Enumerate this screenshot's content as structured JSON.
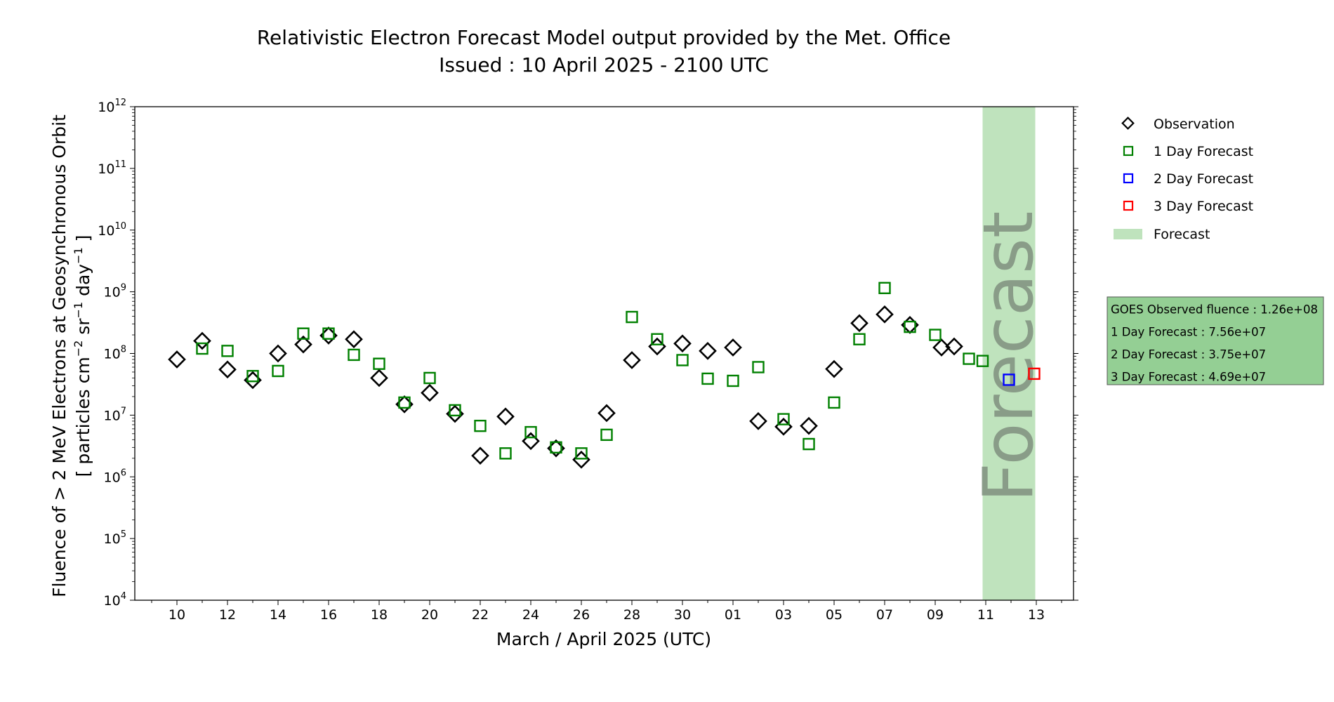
{
  "title": {
    "line1": "Relativistic Electron Forecast Model output provided by the Met. Office",
    "line2": "Issued : 10 April 2025 - 2100 UTC"
  },
  "axes": {
    "xlabel": "March / April 2025 (UTC)",
    "ylabel_line1": "Fluence of > 2 MeV Electrons at Geosynchronous Orbit",
    "ylabel_line2_parts": [
      "[ particles cm",
      "−2",
      " sr",
      "−1",
      " day",
      "−1",
      " ]"
    ],
    "x_tick_labels": [
      "10",
      "12",
      "14",
      "16",
      "18",
      "20",
      "22",
      "24",
      "26",
      "28",
      "30",
      "01",
      "03",
      "05",
      "07",
      "09",
      "11",
      "13"
    ],
    "y_tick_exponents": [
      "4",
      "5",
      "6",
      "7",
      "8",
      "9",
      "10",
      "11",
      "12"
    ]
  },
  "legend": {
    "observation": "Observation",
    "one_day": "1 Day Forecast",
    "two_day": "2 Day Forecast",
    "three_day": "3 Day Forecast",
    "forecast": "Forecast"
  },
  "forecast_band_text": "Forecast",
  "info_box": {
    "line1": "GOES Observed fluence : 1.26e+08",
    "line2": "1 Day Forecast : 7.56e+07",
    "line3": "2 Day Forecast : 3.75e+07",
    "line4": "3 Day Forecast : 4.69e+07"
  },
  "colors": {
    "observation": "#000000",
    "one_day": "#008000",
    "two_day": "#0000ff",
    "three_day": "#ff0000",
    "forecast_band": "#bfe3bd",
    "info_box": "#94cf94"
  },
  "chart_data": {
    "type": "scatter",
    "xlabel": "March / April 2025 (UTC)",
    "ylabel": "Fluence of > 2 MeV Electrons at Geosynchronous Orbit [ particles cm−2 sr−1 day−1 ]",
    "yscale": "log",
    "ylim": [
      10000,
      1000000000000
    ],
    "xlim": [
      "2025-03-08",
      "2025-04-14"
    ],
    "forecast_band": [
      "2025-04-10 21:00",
      "2025-04-12 23:00"
    ],
    "legend_position": "right",
    "series": [
      {
        "name": "Observation",
        "marker": "diamond",
        "points": [
          [
            "2025-03-10",
            80000000
          ],
          [
            "2025-03-11",
            160000000
          ],
          [
            "2025-03-12",
            55000000
          ],
          [
            "2025-03-13",
            37000000
          ],
          [
            "2025-03-14",
            100000000
          ],
          [
            "2025-03-15",
            140000000
          ],
          [
            "2025-03-16",
            195000000
          ],
          [
            "2025-03-17",
            170000000
          ],
          [
            "2025-03-18",
            40000000
          ],
          [
            "2025-03-19",
            15000000
          ],
          [
            "2025-03-20",
            23000000
          ],
          [
            "2025-03-21",
            10500000
          ],
          [
            "2025-03-22",
            2200000
          ],
          [
            "2025-03-23",
            9500000
          ],
          [
            "2025-03-24",
            3800000
          ],
          [
            "2025-03-25",
            2900000
          ],
          [
            "2025-03-26",
            1900000
          ],
          [
            "2025-03-27",
            10800000
          ],
          [
            "2025-03-28",
            78000000
          ],
          [
            "2025-03-29",
            130000000
          ],
          [
            "2025-03-30",
            145000000
          ],
          [
            "2025-03-31",
            110000000
          ],
          [
            "2025-04-01",
            125000000
          ],
          [
            "2025-04-02",
            8000000
          ],
          [
            "2025-04-03",
            6500000
          ],
          [
            "2025-04-04",
            6700000
          ],
          [
            "2025-04-05",
            56000000
          ],
          [
            "2025-04-06",
            310000000
          ],
          [
            "2025-04-07",
            430000000
          ],
          [
            "2025-04-08",
            290000000
          ],
          [
            "2025-04-09 06:00",
            125000000
          ],
          [
            "2025-04-09 18:00",
            130000000
          ]
        ]
      },
      {
        "name": "1 Day Forecast",
        "marker": "square",
        "points": [
          [
            "2025-03-11",
            120000000
          ],
          [
            "2025-03-12",
            110000000
          ],
          [
            "2025-03-13",
            43000000
          ],
          [
            "2025-03-14",
            52000000
          ],
          [
            "2025-03-15",
            210000000
          ],
          [
            "2025-03-16",
            210000000
          ],
          [
            "2025-03-17",
            95000000
          ],
          [
            "2025-03-18",
            68000000
          ],
          [
            "2025-03-19",
            16000000
          ],
          [
            "2025-03-20",
            40000000
          ],
          [
            "2025-03-21",
            12000000
          ],
          [
            "2025-03-22",
            6700000
          ],
          [
            "2025-03-23",
            2400000
          ],
          [
            "2025-03-24",
            5300000
          ],
          [
            "2025-03-25",
            3000000
          ],
          [
            "2025-03-26",
            2400000
          ],
          [
            "2025-03-27",
            4800000
          ],
          [
            "2025-03-28",
            390000000
          ],
          [
            "2025-03-29",
            170000000
          ],
          [
            "2025-03-30",
            78000000
          ],
          [
            "2025-03-31",
            39000000
          ],
          [
            "2025-04-01",
            36000000
          ],
          [
            "2025-04-02",
            60000000
          ],
          [
            "2025-04-03",
            8600000
          ],
          [
            "2025-04-04",
            3400000
          ],
          [
            "2025-04-05",
            16000000
          ],
          [
            "2025-04-06",
            170000000
          ],
          [
            "2025-04-07",
            1150000000
          ],
          [
            "2025-04-08",
            270000000
          ],
          [
            "2025-04-09",
            200000000
          ],
          [
            "2025-04-10 08:00",
            82000000
          ],
          [
            "2025-04-10 21:00",
            75600000
          ]
        ]
      },
      {
        "name": "2 Day Forecast",
        "marker": "square",
        "points": [
          [
            "2025-04-11 22:00",
            37500000
          ]
        ]
      },
      {
        "name": "3 Day Forecast",
        "marker": "square",
        "points": [
          [
            "2025-04-12 22:00",
            46900000
          ]
        ]
      }
    ]
  }
}
